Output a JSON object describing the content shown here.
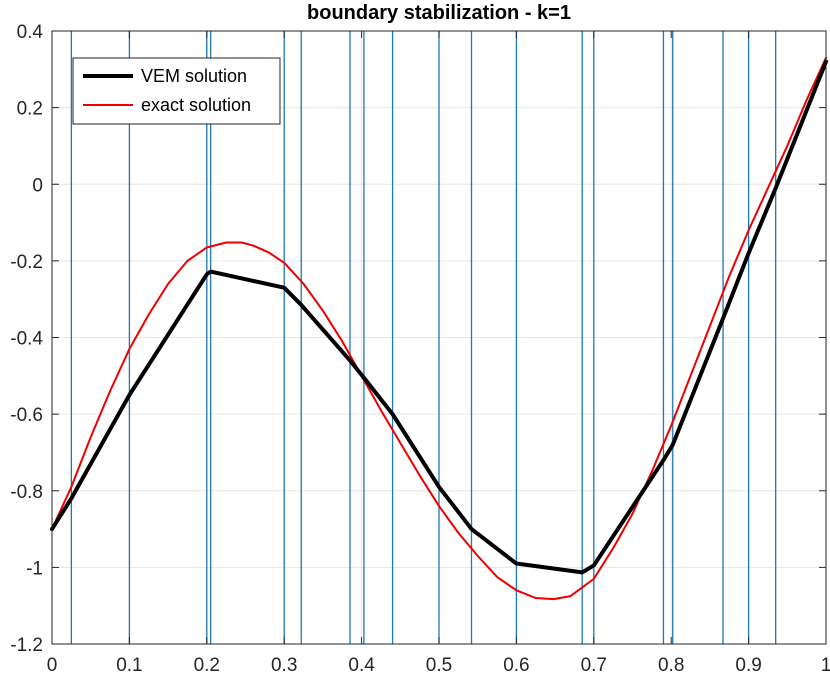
{
  "chart_data": {
    "type": "line",
    "title": "boundary stabilization - k=1",
    "xlabel": "",
    "ylabel": "",
    "xlim": [
      0,
      1
    ],
    "ylim": [
      -1.2,
      0.4
    ],
    "grid": true,
    "legend_position": "top-left",
    "x_ticks": [
      0,
      0.1,
      0.2,
      0.3,
      0.4,
      0.5,
      0.6,
      0.7,
      0.8,
      0.9,
      1
    ],
    "x_tick_labels": [
      "0",
      "0.1",
      "0.2",
      "0.3",
      "0.4",
      "0.5",
      "0.6",
      "0.7",
      "0.8",
      "0.9",
      "1"
    ],
    "y_ticks": [
      0.4,
      0.2,
      0,
      -0.2,
      -0.4,
      -0.6,
      -0.8,
      -1,
      -1.2
    ],
    "y_tick_labels": [
      "0.4",
      "0.2",
      "0",
      "-0.2",
      "-0.4",
      "-0.6",
      "-0.8",
      "-1",
      "-1.2"
    ],
    "mesh_nodes": [
      0.025,
      0.1,
      0.2,
      0.205,
      0.3,
      0.322,
      0.385,
      0.403,
      0.44,
      0.5,
      0.542,
      0.6,
      0.685,
      0.7,
      0.79,
      0.802,
      0.867,
      0.9,
      0.935
    ],
    "series": [
      {
        "name": "VEM solution",
        "color": "#000000",
        "x": [
          0,
          0.025,
          0.1,
          0.2,
          0.205,
          0.3,
          0.322,
          0.385,
          0.403,
          0.44,
          0.5,
          0.542,
          0.6,
          0.685,
          0.7,
          0.79,
          0.802,
          0.867,
          0.9,
          0.935,
          1
        ],
        "y": [
          -0.9,
          -0.82,
          -0.55,
          -0.235,
          -0.228,
          -0.27,
          -0.315,
          -0.46,
          -0.505,
          -0.6,
          -0.79,
          -0.9,
          -0.99,
          -1.013,
          -0.995,
          -0.72,
          -0.68,
          -0.35,
          -0.18,
          -0.01,
          0.32
        ]
      },
      {
        "name": "exact solution",
        "color": "#ee0000",
        "x": [
          0,
          0.025,
          0.05,
          0.075,
          0.1,
          0.125,
          0.15,
          0.175,
          0.2,
          0.225,
          0.245,
          0.26,
          0.28,
          0.3,
          0.325,
          0.35,
          0.375,
          0.4,
          0.425,
          0.45,
          0.475,
          0.5,
          0.525,
          0.55,
          0.575,
          0.6,
          0.625,
          0.648,
          0.67,
          0.7,
          0.725,
          0.75,
          0.775,
          0.8,
          0.825,
          0.85,
          0.875,
          0.9,
          0.925,
          0.95,
          0.975,
          1
        ],
        "y": [
          -0.9,
          -0.79,
          -0.66,
          -0.54,
          -0.43,
          -0.34,
          -0.26,
          -0.2,
          -0.165,
          -0.152,
          -0.152,
          -0.16,
          -0.178,
          -0.205,
          -0.26,
          -0.33,
          -0.41,
          -0.5,
          -0.59,
          -0.675,
          -0.76,
          -0.84,
          -0.91,
          -0.97,
          -1.025,
          -1.06,
          -1.08,
          -1.083,
          -1.075,
          -1.03,
          -0.95,
          -0.86,
          -0.75,
          -0.63,
          -0.5,
          -0.37,
          -0.24,
          -0.12,
          -0.01,
          0.1,
          0.22,
          0.33
        ]
      }
    ]
  }
}
